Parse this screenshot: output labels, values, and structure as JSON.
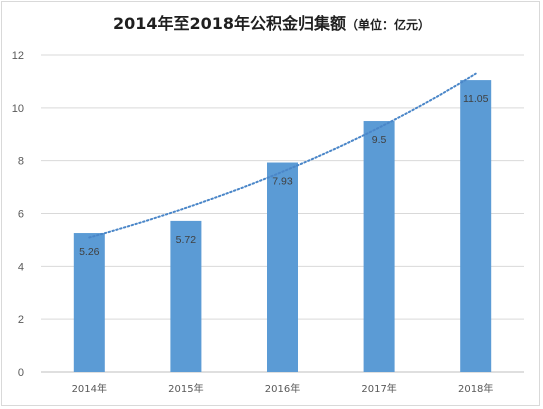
{
  "chart_data": {
    "type": "bar",
    "title": "2014年至2018年公积金归集额",
    "title_suffix": "（单位：亿元）",
    "categories": [
      "2014年",
      "2015年",
      "2016年",
      "2017年",
      "2018年"
    ],
    "values": [
      5.26,
      5.72,
      7.93,
      9.5,
      11.05
    ],
    "data_labels": [
      "5.26",
      "5.72",
      "7.93",
      "9.5",
      "11.05"
    ],
    "ylim": [
      0,
      12
    ],
    "yticks": [
      0,
      2,
      4,
      6,
      8,
      10,
      12
    ],
    "grid": true,
    "legend": "none",
    "trendline": "dotted exponential",
    "bar_color": "#5b9bd5",
    "trend_color": "#4a86c8"
  }
}
